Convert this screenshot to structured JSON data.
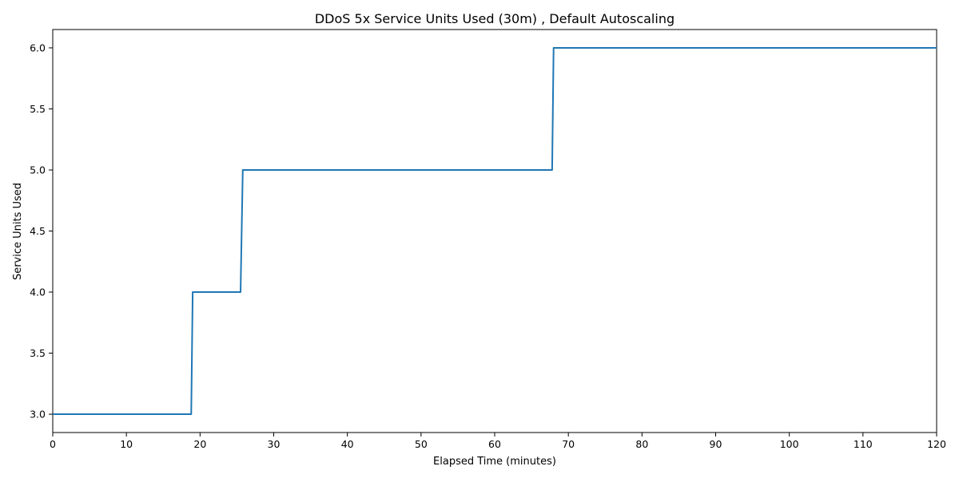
{
  "chart_data": {
    "type": "line",
    "title": "DDoS 5x Service Units Used (30m) , Default Autoscaling",
    "xlabel": "Elapsed Time (minutes)",
    "ylabel": "Service Units Used",
    "xlim": [
      0,
      120
    ],
    "ylim": [
      2.85,
      6.15
    ],
    "x_ticks": [
      0,
      10,
      20,
      30,
      40,
      50,
      60,
      70,
      80,
      90,
      100,
      110,
      120
    ],
    "x_tick_labels": [
      "0",
      "10",
      "20",
      "30",
      "40",
      "50",
      "60",
      "70",
      "80",
      "90",
      "100",
      "110",
      "120"
    ],
    "y_ticks": [
      3.0,
      3.5,
      4.0,
      4.5,
      5.0,
      5.5,
      6.0
    ],
    "y_tick_labels": [
      "3.0",
      "3.5",
      "4.0",
      "4.5",
      "5.0",
      "5.5",
      "6.0"
    ],
    "grid": false,
    "legend": "none",
    "series": [
      {
        "color": "#1f77b4",
        "x": [
          0,
          18.8,
          19.0,
          25.5,
          25.8,
          67.8,
          68.0,
          120
        ],
        "y": [
          3.0,
          3.0,
          4.0,
          4.0,
          5.0,
          5.0,
          6.0,
          6.0
        ]
      }
    ]
  }
}
